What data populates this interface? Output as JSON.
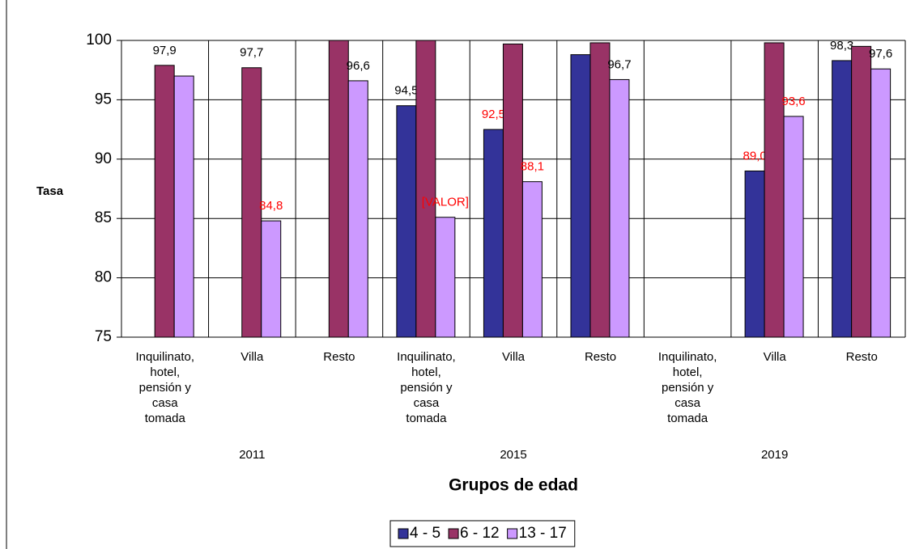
{
  "chart_data": {
    "type": "bar",
    "y_label": "Tasa",
    "x_label": "Grupos de edad",
    "categories": [
      "Inquilinato, hotel, pensión y casa tomada",
      "Villa",
      "Resto",
      "Inquilinato, hotel, pensión y casa tomada",
      "Villa",
      "Resto",
      "Inquilinato, hotel, pensión y casa tomada",
      "Villa",
      "Resto"
    ],
    "group_labels": [
      "2011",
      "2015",
      "2019"
    ],
    "series": [
      {
        "name": "4 - 5",
        "color": "#333399",
        "values": [
          null,
          null,
          null,
          94.5,
          92.5,
          98.8,
          null,
          89.0,
          98.3
        ],
        "value_labels": [
          null,
          null,
          null,
          "94,5",
          "92,5",
          null,
          null,
          "89,0",
          "98,3"
        ],
        "value_label_colors": [
          null,
          null,
          null,
          "#000000",
          "#ff0000",
          null,
          null,
          "#ff0000",
          "#000000"
        ]
      },
      {
        "name": "6 - 12",
        "color": "#993366",
        "values": [
          97.9,
          97.7,
          100,
          100,
          99.7,
          99.8,
          null,
          99.8,
          99.5
        ],
        "value_labels": [
          "97,9",
          "97,7",
          null,
          null,
          null,
          null,
          null,
          null,
          null
        ],
        "value_label_colors": [
          "#000000",
          "#000000",
          null,
          null,
          null,
          null,
          null,
          null,
          null
        ]
      },
      {
        "name": "13 - 17",
        "color": "#cc99ff",
        "values": [
          97.0,
          84.8,
          96.6,
          85.1,
          88.1,
          96.7,
          null,
          93.6,
          97.6
        ],
        "value_labels": [
          null,
          "84,8",
          "96,6",
          "[VALOR]",
          "88,1",
          "96,7",
          null,
          "93,6",
          "97,6"
        ],
        "value_label_colors": [
          null,
          "#ff0000",
          "#000000",
          "#ff0000",
          "#ff0000",
          "#000000",
          null,
          "#ff0000",
          "#000000"
        ]
      }
    ],
    "ylim": [
      75,
      100
    ],
    "yticks": [
      75,
      80,
      85,
      90,
      95,
      100
    ],
    "grid": true,
    "legend": "bottom"
  }
}
